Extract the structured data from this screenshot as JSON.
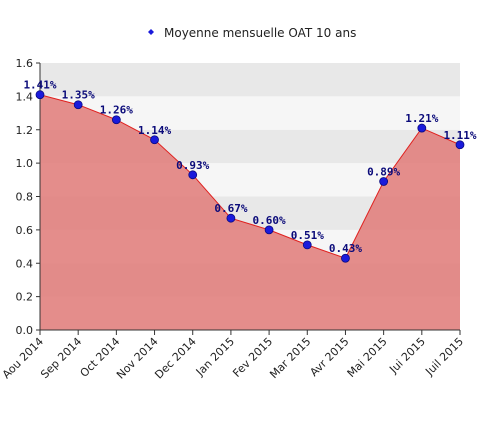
{
  "chart_data": {
    "type": "area",
    "title": "",
    "xlabel": "",
    "ylabel": "",
    "categories": [
      "Aou 2014",
      "Sep 2014",
      "Oct 2014",
      "Nov 2014",
      "Dec 2014",
      "Jan 2015",
      "Fev 2015",
      "Mar 2015",
      "Avr 2015",
      "Mai 2015",
      "Jui 2015",
      "Juil 2015"
    ],
    "series": [
      {
        "name": "Moyenne mensuelle OAT 10 ans",
        "values": [
          1.41,
          1.35,
          1.26,
          1.14,
          0.93,
          0.67,
          0.6,
          0.51,
          0.43,
          0.89,
          1.21,
          1.11
        ],
        "labels": [
          "1.41%",
          "1.35%",
          "1.26%",
          "1.14%",
          "0.93%",
          "0.67%",
          "0.60%",
          "0.51%",
          "0.43%",
          "0.89%",
          "1.21%",
          "1.11%"
        ]
      }
    ],
    "ylim": [
      0,
      1.6
    ],
    "yticks": [
      "0.0",
      "0.2",
      "0.4",
      "0.6",
      "0.8",
      "1.0",
      "1.2",
      "1.4",
      "1.6"
    ],
    "grid": "horizontal bands",
    "legend_position": "top-center",
    "colors": {
      "fill": "#e07a78",
      "line": "#e0201e",
      "marker": "#1a1adb",
      "band_dark": "#e8e8e8",
      "band_light": "#f6f6f6"
    }
  }
}
